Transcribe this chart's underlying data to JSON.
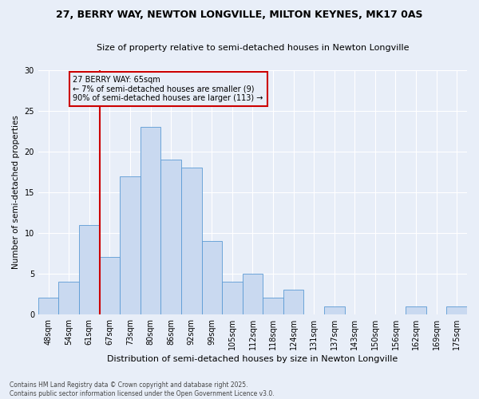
{
  "title": "27, BERRY WAY, NEWTON LONGVILLE, MILTON KEYNES, MK17 0AS",
  "subtitle": "Size of property relative to semi-detached houses in Newton Longville",
  "xlabel": "Distribution of semi-detached houses by size in Newton Longville",
  "ylabel": "Number of semi-detached properties",
  "footnote": "Contains HM Land Registry data © Crown copyright and database right 2025.\nContains public sector information licensed under the Open Government Licence v3.0.",
  "bar_labels": [
    "48sqm",
    "54sqm",
    "61sqm",
    "67sqm",
    "73sqm",
    "80sqm",
    "86sqm",
    "92sqm",
    "99sqm",
    "105sqm",
    "112sqm",
    "118sqm",
    "124sqm",
    "131sqm",
    "137sqm",
    "143sqm",
    "150sqm",
    "156sqm",
    "162sqm",
    "169sqm",
    "175sqm"
  ],
  "bar_values": [
    2,
    4,
    11,
    7,
    17,
    23,
    19,
    18,
    9,
    4,
    5,
    2,
    3,
    0,
    1,
    0,
    0,
    0,
    1,
    0,
    1
  ],
  "bar_color": "#c9d9f0",
  "bar_edge_color": "#5b9bd5",
  "annotation_label": "27 BERRY WAY: 65sqm\n← 7% of semi-detached houses are smaller (9)\n90% of semi-detached houses are larger (113) →",
  "vline_x_index": 2.5,
  "vline_color": "#cc0000",
  "annotation_box_color": "#cc0000",
  "background_color": "#e8eef8",
  "grid_color": "#ffffff",
  "ylim": [
    0,
    30
  ],
  "yticks": [
    0,
    5,
    10,
    15,
    20,
    25,
    30
  ],
  "title_fontsize": 9,
  "subtitle_fontsize": 8,
  "xlabel_fontsize": 8,
  "ylabel_fontsize": 7.5,
  "tick_fontsize": 7,
  "annotation_fontsize": 7,
  "footnote_fontsize": 5.5
}
